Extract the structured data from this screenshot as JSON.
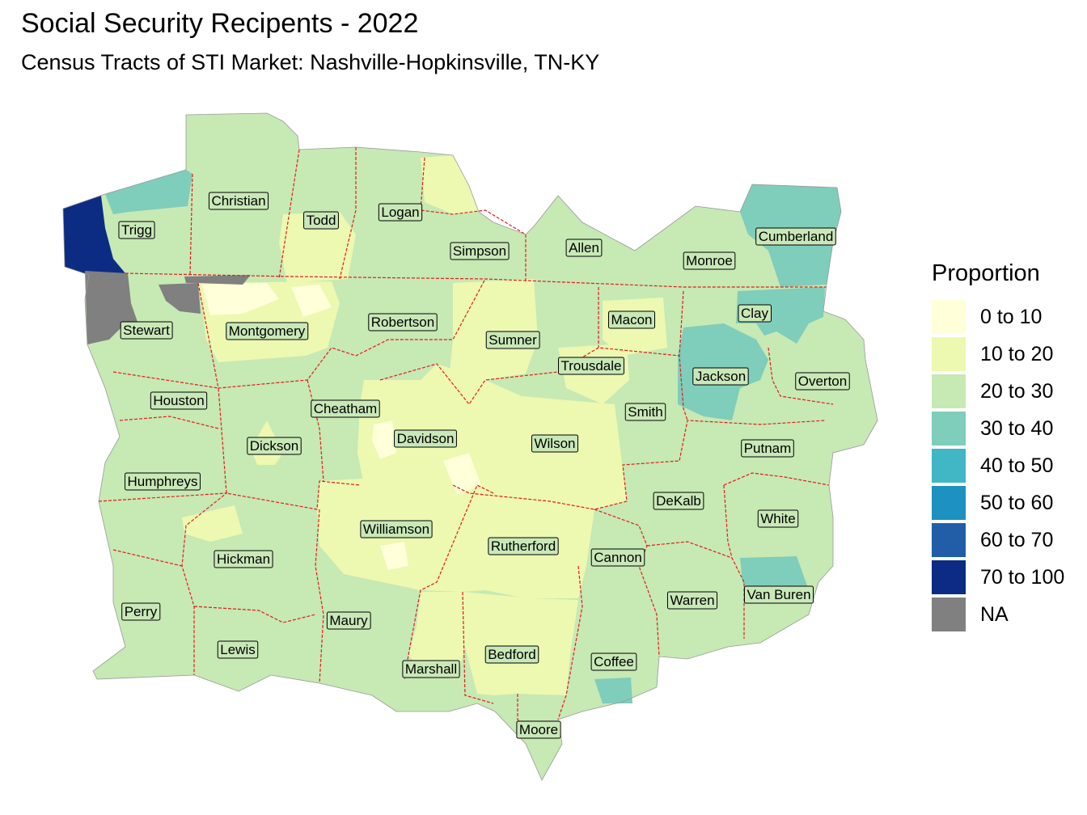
{
  "title": "Social Security Recipents - 2022",
  "subtitle": "Census Tracts of STI Market: Nashville-Hopkinsville, TN-KY",
  "legend": {
    "title": "Proportion",
    "items": [
      {
        "label": "0 to 10",
        "color": "#ffffd9"
      },
      {
        "label": "10 to 20",
        "color": "#edf8b1"
      },
      {
        "label": "20 to 30",
        "color": "#c7e9b4"
      },
      {
        "label": "30 to 40",
        "color": "#7fcdbb"
      },
      {
        "label": "40 to 50",
        "color": "#41b6c4"
      },
      {
        "label": "50 to 60",
        "color": "#1d91c0"
      },
      {
        "label": "60 to 70",
        "color": "#225ea8"
      },
      {
        "label": "70 to 100",
        "color": "#0c2c84"
      },
      {
        "label": "NA",
        "color": "#808080"
      }
    ]
  },
  "colors": {
    "boundary": "#e31a1c"
  },
  "counties": [
    "Trigg",
    "Christian",
    "Todd",
    "Logan",
    "Simpson",
    "Allen",
    "Monroe",
    "Cumberland",
    "Stewart",
    "Montgomery",
    "Robertson",
    "Sumner",
    "Macon",
    "Clay",
    "Trousdale",
    "Jackson",
    "Overton",
    "Houston",
    "Cheatham",
    "Davidson",
    "Smith",
    "Wilson",
    "Dickson",
    "Putnam",
    "Humphreys",
    "DeKalb",
    "White",
    "Williamson",
    "Rutherford",
    "Cannon",
    "Hickman",
    "Warren",
    "Van Buren",
    "Perry",
    "Maury",
    "Lewis",
    "Coffee",
    "Bedford",
    "Marshall",
    "Moore"
  ]
}
